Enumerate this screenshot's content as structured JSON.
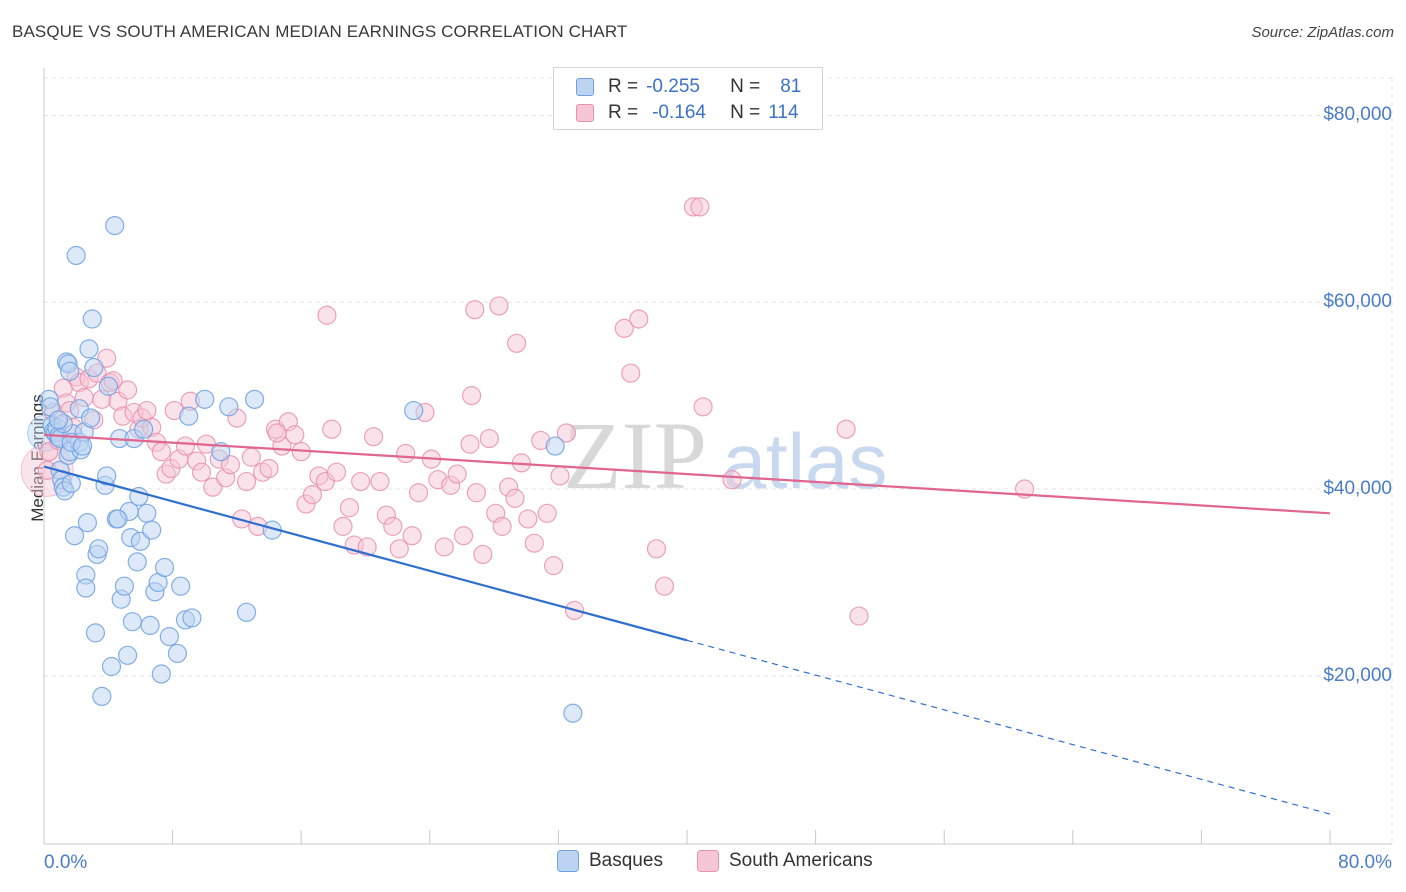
{
  "chart_data": {
    "type": "scatter",
    "title": "BASQUE VS SOUTH AMERICAN MEDIAN EARNINGS CORRELATION CHART",
    "source": "Source: ZipAtlas.com",
    "xlabel": "",
    "ylabel": "Median Earnings",
    "xlim": [
      0,
      80
    ],
    "ylim": [
      2000,
      84000
    ],
    "x_tick_labels": [
      "0.0%",
      "80.0%"
    ],
    "y_ticks": [
      {
        "value": 20000,
        "label": "$20,000"
      },
      {
        "value": 40000,
        "label": "$40,000"
      },
      {
        "value": 60000,
        "label": "$60,000"
      },
      {
        "value": 80000,
        "label": "$80,000"
      }
    ],
    "grid": true,
    "watermark": {
      "zip": "ZIP",
      "atlas": "atlas"
    },
    "legend_stats": [
      {
        "r_label": "R =",
        "r_value": "-0.255",
        "n_label": "N =",
        "n_value": "81"
      },
      {
        "r_label": "R =",
        "r_value": "-0.164",
        "n_label": "N =",
        "n_value": "114"
      }
    ],
    "series": [
      {
        "name": "Basques",
        "color": "#6fa1e0",
        "fill": "#bcd4f2",
        "line_color": "#2f6fcf",
        "trend": {
          "x0": 0,
          "y0": 42400,
          "x1": 40,
          "y1": 23800,
          "dash_to_x": 80,
          "dash_to_y": 5200
        },
        "points": [
          [
            0.3,
            49600
          ],
          [
            0.4,
            48800
          ],
          [
            0.5,
            46800
          ],
          [
            0.6,
            46200
          ],
          [
            0.7,
            46000
          ],
          [
            0.8,
            46600
          ],
          [
            0.9,
            45600
          ],
          [
            1.0,
            45400
          ],
          [
            1.0,
            42000
          ],
          [
            1.1,
            41000
          ],
          [
            1.2,
            40200
          ],
          [
            1.3,
            39800
          ],
          [
            1.5,
            43600
          ],
          [
            1.6,
            44000
          ],
          [
            1.7,
            40600
          ],
          [
            1.8,
            45900
          ],
          [
            1.4,
            53600
          ],
          [
            1.5,
            53400
          ],
          [
            1.6,
            52600
          ],
          [
            1.9,
            35000
          ],
          [
            2.0,
            65000
          ],
          [
            2.2,
            48600
          ],
          [
            2.2,
            45000
          ],
          [
            2.3,
            44200
          ],
          [
            2.5,
            46100
          ],
          [
            2.6,
            30800
          ],
          [
            2.6,
            29400
          ],
          [
            2.7,
            36400
          ],
          [
            2.8,
            55000
          ],
          [
            2.9,
            47600
          ],
          [
            3.0,
            58200
          ],
          [
            3.1,
            53000
          ],
          [
            3.2,
            24600
          ],
          [
            3.3,
            33000
          ],
          [
            3.4,
            33600
          ],
          [
            3.6,
            17800
          ],
          [
            3.8,
            40400
          ],
          [
            3.9,
            41400
          ],
          [
            4.0,
            51000
          ],
          [
            4.2,
            21000
          ],
          [
            4.4,
            68200
          ],
          [
            4.5,
            36800
          ],
          [
            4.7,
            45400
          ],
          [
            4.8,
            28200
          ],
          [
            5.0,
            29600
          ],
          [
            5.2,
            22200
          ],
          [
            5.3,
            37600
          ],
          [
            5.4,
            34800
          ],
          [
            5.5,
            25800
          ],
          [
            5.6,
            45400
          ],
          [
            5.8,
            32200
          ],
          [
            5.9,
            39200
          ],
          [
            6.0,
            34400
          ],
          [
            6.2,
            46400
          ],
          [
            6.4,
            37400
          ],
          [
            6.6,
            25400
          ],
          [
            6.7,
            35600
          ],
          [
            6.9,
            29000
          ],
          [
            7.1,
            30000
          ],
          [
            7.3,
            20200
          ],
          [
            7.5,
            31600
          ],
          [
            7.8,
            24200
          ],
          [
            8.3,
            22400
          ],
          [
            8.5,
            29600
          ],
          [
            8.8,
            26000
          ],
          [
            9.0,
            47800
          ],
          [
            9.2,
            26200
          ],
          [
            10.0,
            49600
          ],
          [
            11.0,
            44000
          ],
          [
            11.5,
            48800
          ],
          [
            12.6,
            26800
          ],
          [
            13.1,
            49600
          ],
          [
            14.2,
            35600
          ],
          [
            23.0,
            48400
          ],
          [
            31.8,
            44600
          ],
          [
            32.9,
            16000
          ],
          [
            1.2,
            47000
          ],
          [
            0.9,
            47400
          ],
          [
            1.7,
            45000
          ],
          [
            2.4,
            44600
          ],
          [
            4.6,
            36800
          ]
        ]
      },
      {
        "name": "South Americans",
        "color": "#e892b0",
        "fill": "#f6c6d6",
        "line_color": "#e0668f",
        "trend": {
          "x0": 0,
          "y0": 45800,
          "x1": 80,
          "y1": 37400
        },
        "points": [
          [
            0.2,
            42000
          ],
          [
            0.3,
            44000
          ],
          [
            0.6,
            48200
          ],
          [
            0.9,
            45200
          ],
          [
            1.2,
            50800
          ],
          [
            1.4,
            49200
          ],
          [
            1.6,
            48400
          ],
          [
            1.8,
            46600
          ],
          [
            2.0,
            52000
          ],
          [
            2.2,
            51400
          ],
          [
            2.5,
            49800
          ],
          [
            2.8,
            51800
          ],
          [
            3.1,
            47400
          ],
          [
            3.3,
            52400
          ],
          [
            3.6,
            49600
          ],
          [
            3.9,
            54000
          ],
          [
            4.1,
            51400
          ],
          [
            4.3,
            51600
          ],
          [
            4.6,
            49400
          ],
          [
            4.9,
            47800
          ],
          [
            5.2,
            50600
          ],
          [
            5.6,
            48200
          ],
          [
            5.9,
            46400
          ],
          [
            6.1,
            47600
          ],
          [
            6.4,
            48400
          ],
          [
            6.7,
            46600
          ],
          [
            7.0,
            45000
          ],
          [
            7.3,
            44000
          ],
          [
            7.6,
            41600
          ],
          [
            7.9,
            42200
          ],
          [
            8.1,
            48400
          ],
          [
            8.4,
            43200
          ],
          [
            8.8,
            44600
          ],
          [
            9.1,
            49400
          ],
          [
            9.5,
            43000
          ],
          [
            9.8,
            41800
          ],
          [
            10.1,
            44800
          ],
          [
            10.5,
            40200
          ],
          [
            10.9,
            43200
          ],
          [
            11.3,
            41200
          ],
          [
            11.6,
            42600
          ],
          [
            12.0,
            47600
          ],
          [
            12.3,
            36800
          ],
          [
            12.6,
            40800
          ],
          [
            12.9,
            43400
          ],
          [
            13.3,
            36000
          ],
          [
            13.6,
            41800
          ],
          [
            14.0,
            42200
          ],
          [
            14.4,
            46400
          ],
          [
            14.8,
            44600
          ],
          [
            15.2,
            47200
          ],
          [
            15.6,
            45800
          ],
          [
            16.0,
            44000
          ],
          [
            16.3,
            38400
          ],
          [
            16.7,
            39400
          ],
          [
            17.1,
            41400
          ],
          [
            17.5,
            40800
          ],
          [
            17.9,
            46400
          ],
          [
            18.2,
            41800
          ],
          [
            18.6,
            36000
          ],
          [
            19.0,
            38000
          ],
          [
            19.3,
            34000
          ],
          [
            19.7,
            40800
          ],
          [
            20.1,
            33800
          ],
          [
            20.5,
            45600
          ],
          [
            20.9,
            40800
          ],
          [
            21.3,
            37200
          ],
          [
            21.7,
            36000
          ],
          [
            22.1,
            33600
          ],
          [
            22.5,
            43800
          ],
          [
            22.9,
            35000
          ],
          [
            23.3,
            39600
          ],
          [
            23.7,
            48200
          ],
          [
            24.1,
            43200
          ],
          [
            24.5,
            41000
          ],
          [
            24.9,
            33800
          ],
          [
            25.3,
            40400
          ],
          [
            25.7,
            41600
          ],
          [
            26.1,
            35000
          ],
          [
            26.5,
            44800
          ],
          [
            26.9,
            39600
          ],
          [
            27.3,
            33000
          ],
          [
            27.7,
            45400
          ],
          [
            28.1,
            37400
          ],
          [
            28.5,
            36000
          ],
          [
            28.9,
            40200
          ],
          [
            29.3,
            39000
          ],
          [
            29.7,
            42800
          ],
          [
            30.1,
            36800
          ],
          [
            30.5,
            34200
          ],
          [
            30.9,
            45200
          ],
          [
            31.3,
            37400
          ],
          [
            31.7,
            31800
          ],
          [
            32.1,
            41400
          ],
          [
            32.5,
            46000
          ],
          [
            33.0,
            27000
          ],
          [
            36.1,
            57200
          ],
          [
            36.5,
            52400
          ],
          [
            37.0,
            58200
          ],
          [
            38.1,
            33600
          ],
          [
            38.6,
            29600
          ],
          [
            40.4,
            70200
          ],
          [
            40.8,
            70200
          ],
          [
            41.0,
            48800
          ],
          [
            42.8,
            41000
          ],
          [
            49.9,
            46400
          ],
          [
            50.7,
            26400
          ],
          [
            61.0,
            40000
          ],
          [
            29.4,
            55600
          ],
          [
            28.3,
            59600
          ],
          [
            26.8,
            59200
          ],
          [
            26.6,
            50000
          ],
          [
            17.6,
            58600
          ],
          [
            14.5,
            46000
          ]
        ]
      }
    ]
  },
  "legend_bottom": [
    "Basques",
    "South Americans"
  ]
}
